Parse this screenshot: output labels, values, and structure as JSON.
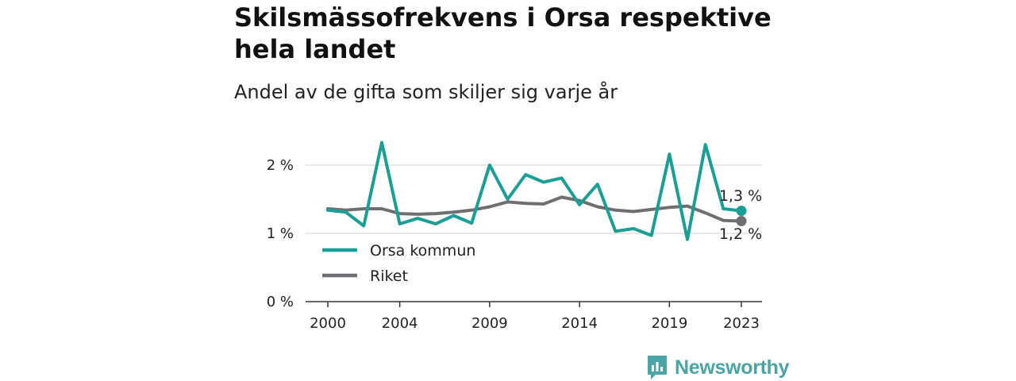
{
  "header": {
    "title": "Skilsmässofrekvens i Orsa respektive hela landet",
    "subtitle": "Andel av de gifta som skiljer sig varje år"
  },
  "brand": {
    "name": "Newsworthy",
    "color": "#4aa3a4"
  },
  "chart_data": {
    "type": "line",
    "x": [
      2000,
      2001,
      2002,
      2003,
      2004,
      2005,
      2006,
      2007,
      2008,
      2009,
      2010,
      2011,
      2012,
      2013,
      2014,
      2015,
      2016,
      2017,
      2018,
      2019,
      2020,
      2021,
      2022,
      2023
    ],
    "series": [
      {
        "name": "Orsa kommun",
        "color": "#1a9e96",
        "values": [
          1.34,
          1.31,
          1.11,
          2.33,
          1.14,
          1.22,
          1.14,
          1.26,
          1.15,
          2.0,
          1.5,
          1.86,
          1.75,
          1.81,
          1.42,
          1.72,
          1.03,
          1.07,
          0.97,
          2.16,
          0.91,
          2.3,
          1.36,
          1.33
        ]
      },
      {
        "name": "Riket",
        "color": "#6f6f73",
        "values": [
          1.36,
          1.34,
          1.36,
          1.36,
          1.29,
          1.28,
          1.29,
          1.31,
          1.34,
          1.39,
          1.46,
          1.44,
          1.43,
          1.53,
          1.48,
          1.39,
          1.34,
          1.32,
          1.35,
          1.38,
          1.4,
          1.3,
          1.19,
          1.18
        ]
      }
    ],
    "end_labels": [
      "1,3 %",
      "1,2 %"
    ],
    "xticks": [
      2000,
      2004,
      2009,
      2014,
      2019,
      2023
    ],
    "xtick_labels": [
      "2000",
      "2004",
      "2009",
      "2014",
      "2019",
      "2023"
    ],
    "yticks": [
      0,
      1,
      2
    ],
    "ytick_labels": [
      "0 %",
      "1 %",
      "2 %"
    ],
    "ylim": [
      0,
      2.5
    ],
    "xlim": [
      2000,
      2023
    ],
    "grid": true,
    "legend": "bottom-left"
  }
}
